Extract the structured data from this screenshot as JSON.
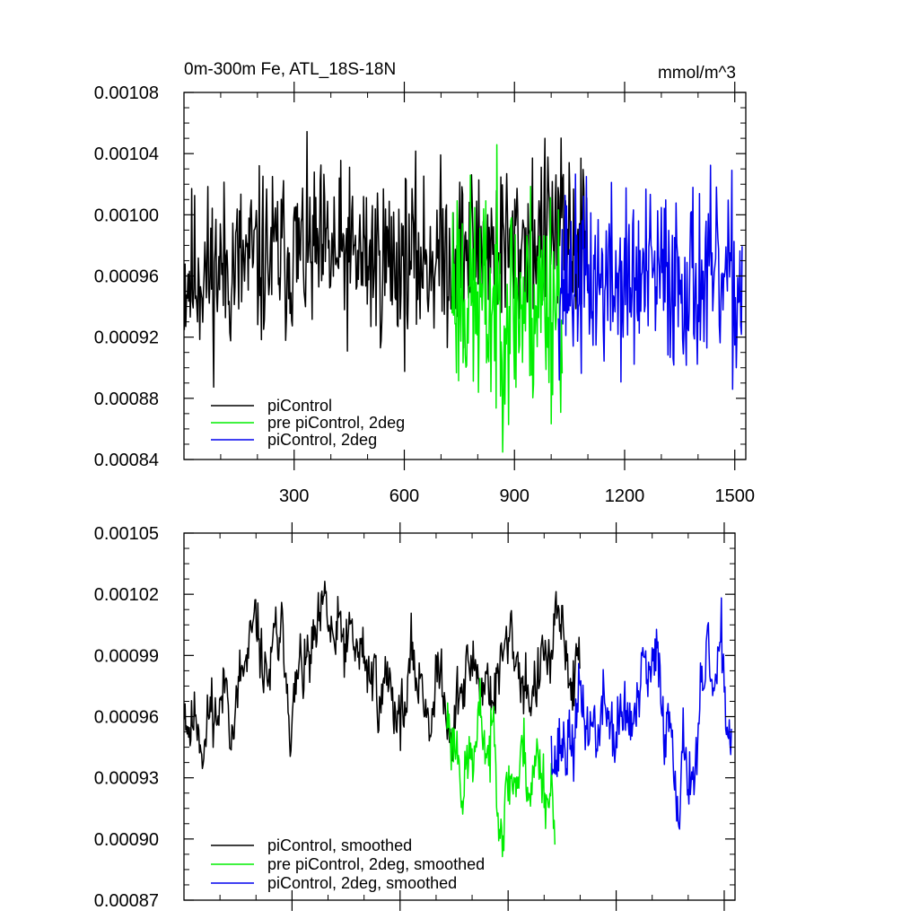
{
  "chart_data": [
    {
      "type": "line",
      "title_left": "0m-300m Fe, ATL_18S-18N",
      "title_right": "mmol/m^3",
      "xlim": [
        0,
        1530
      ],
      "ylim": [
        0.00084,
        0.00108
      ],
      "yticks": [
        0.00084,
        0.00088,
        0.00092,
        0.00096,
        0.001,
        0.00104,
        0.00108
      ],
      "ytick_labels": [
        "0.00084",
        "0.00088",
        "0.00092",
        "0.00096",
        "0.00100",
        "0.00104",
        "0.00108"
      ],
      "xticks": [
        300,
        600,
        900,
        1200,
        1500
      ],
      "xtick_labels": [
        "300",
        "600",
        "900",
        "1200",
        "1500"
      ],
      "legend_position": "bottom-left",
      "series": [
        {
          "name": "piControl",
          "color": "#000000",
          "x_range": [
            1,
            1100
          ],
          "segments": [
            [
              1,
              0.00096
            ],
            [
              300,
              0.000975
            ],
            [
              600,
              0.00097
            ],
            [
              900,
              0.00098
            ],
            [
              1000,
              0.00099
            ],
            [
              1100,
              0.00098
            ]
          ],
          "spread": 2.8e-05,
          "seed": 11
        },
        {
          "name": "pre piControl, 2deg",
          "color": "#00ee00",
          "x_range": [
            730,
            1030
          ],
          "segments": [
            [
              730,
              0.00096
            ],
            [
              800,
              0.00094
            ],
            [
              900,
              0.00094
            ],
            [
              1030,
              0.00095
            ]
          ],
          "spread": 3.8e-05,
          "seed": 23
        },
        {
          "name": "piControl, 2deg",
          "color": "#0000ee",
          "x_range": [
            1020,
            1520
          ],
          "segments": [
            [
              1020,
              0.00096
            ],
            [
              1200,
              0.000955
            ],
            [
              1350,
              0.00096
            ],
            [
              1520,
              0.00095
            ]
          ],
          "spread": 3e-05,
          "seed": 37
        }
      ]
    },
    {
      "type": "line",
      "xlim": [
        0,
        1530
      ],
      "ylim": [
        0.00087,
        0.00105
      ],
      "yticks": [
        0.00087,
        0.0009,
        0.00093,
        0.00096,
        0.00099,
        0.00102,
        0.00105
      ],
      "ytick_labels": [
        "0.00087",
        "0.00090",
        "0.00093",
        "0.00096",
        "0.00099",
        "0.00102",
        "0.00105"
      ],
      "xticks": [
        300,
        600,
        900,
        1200,
        1500
      ],
      "legend_position": "bottom-left",
      "series": [
        {
          "name": "piControl, smoothed",
          "color": "#000000",
          "x_range": [
            1,
            1100
          ],
          "segments": [
            [
              1,
              0.00097
            ],
            [
              300,
              0.000978
            ],
            [
              600,
              0.000975
            ],
            [
              900,
              0.000985
            ],
            [
              1100,
              0.00098
            ]
          ],
          "spread": 1.5e-05,
          "seed": 11
        },
        {
          "name": "pre piControl, 2deg, smoothed",
          "color": "#00ee00",
          "x_range": [
            730,
            1030
          ],
          "segments": [
            [
              730,
              0.00096
            ],
            [
              800,
              0.000945
            ],
            [
              900,
              0.000943
            ],
            [
              1030,
              0.00094
            ]
          ],
          "spread": 1.6e-05,
          "seed": 23
        },
        {
          "name": "piControl, 2deg, smoothed",
          "color": "#0000ee",
          "x_range": [
            1020,
            1520
          ],
          "segments": [
            [
              1020,
              0.00096
            ],
            [
              1200,
              0.000955
            ],
            [
              1350,
              0.000958
            ],
            [
              1520,
              0.00095
            ]
          ],
          "spread": 1.7e-05,
          "seed": 37
        }
      ]
    }
  ]
}
